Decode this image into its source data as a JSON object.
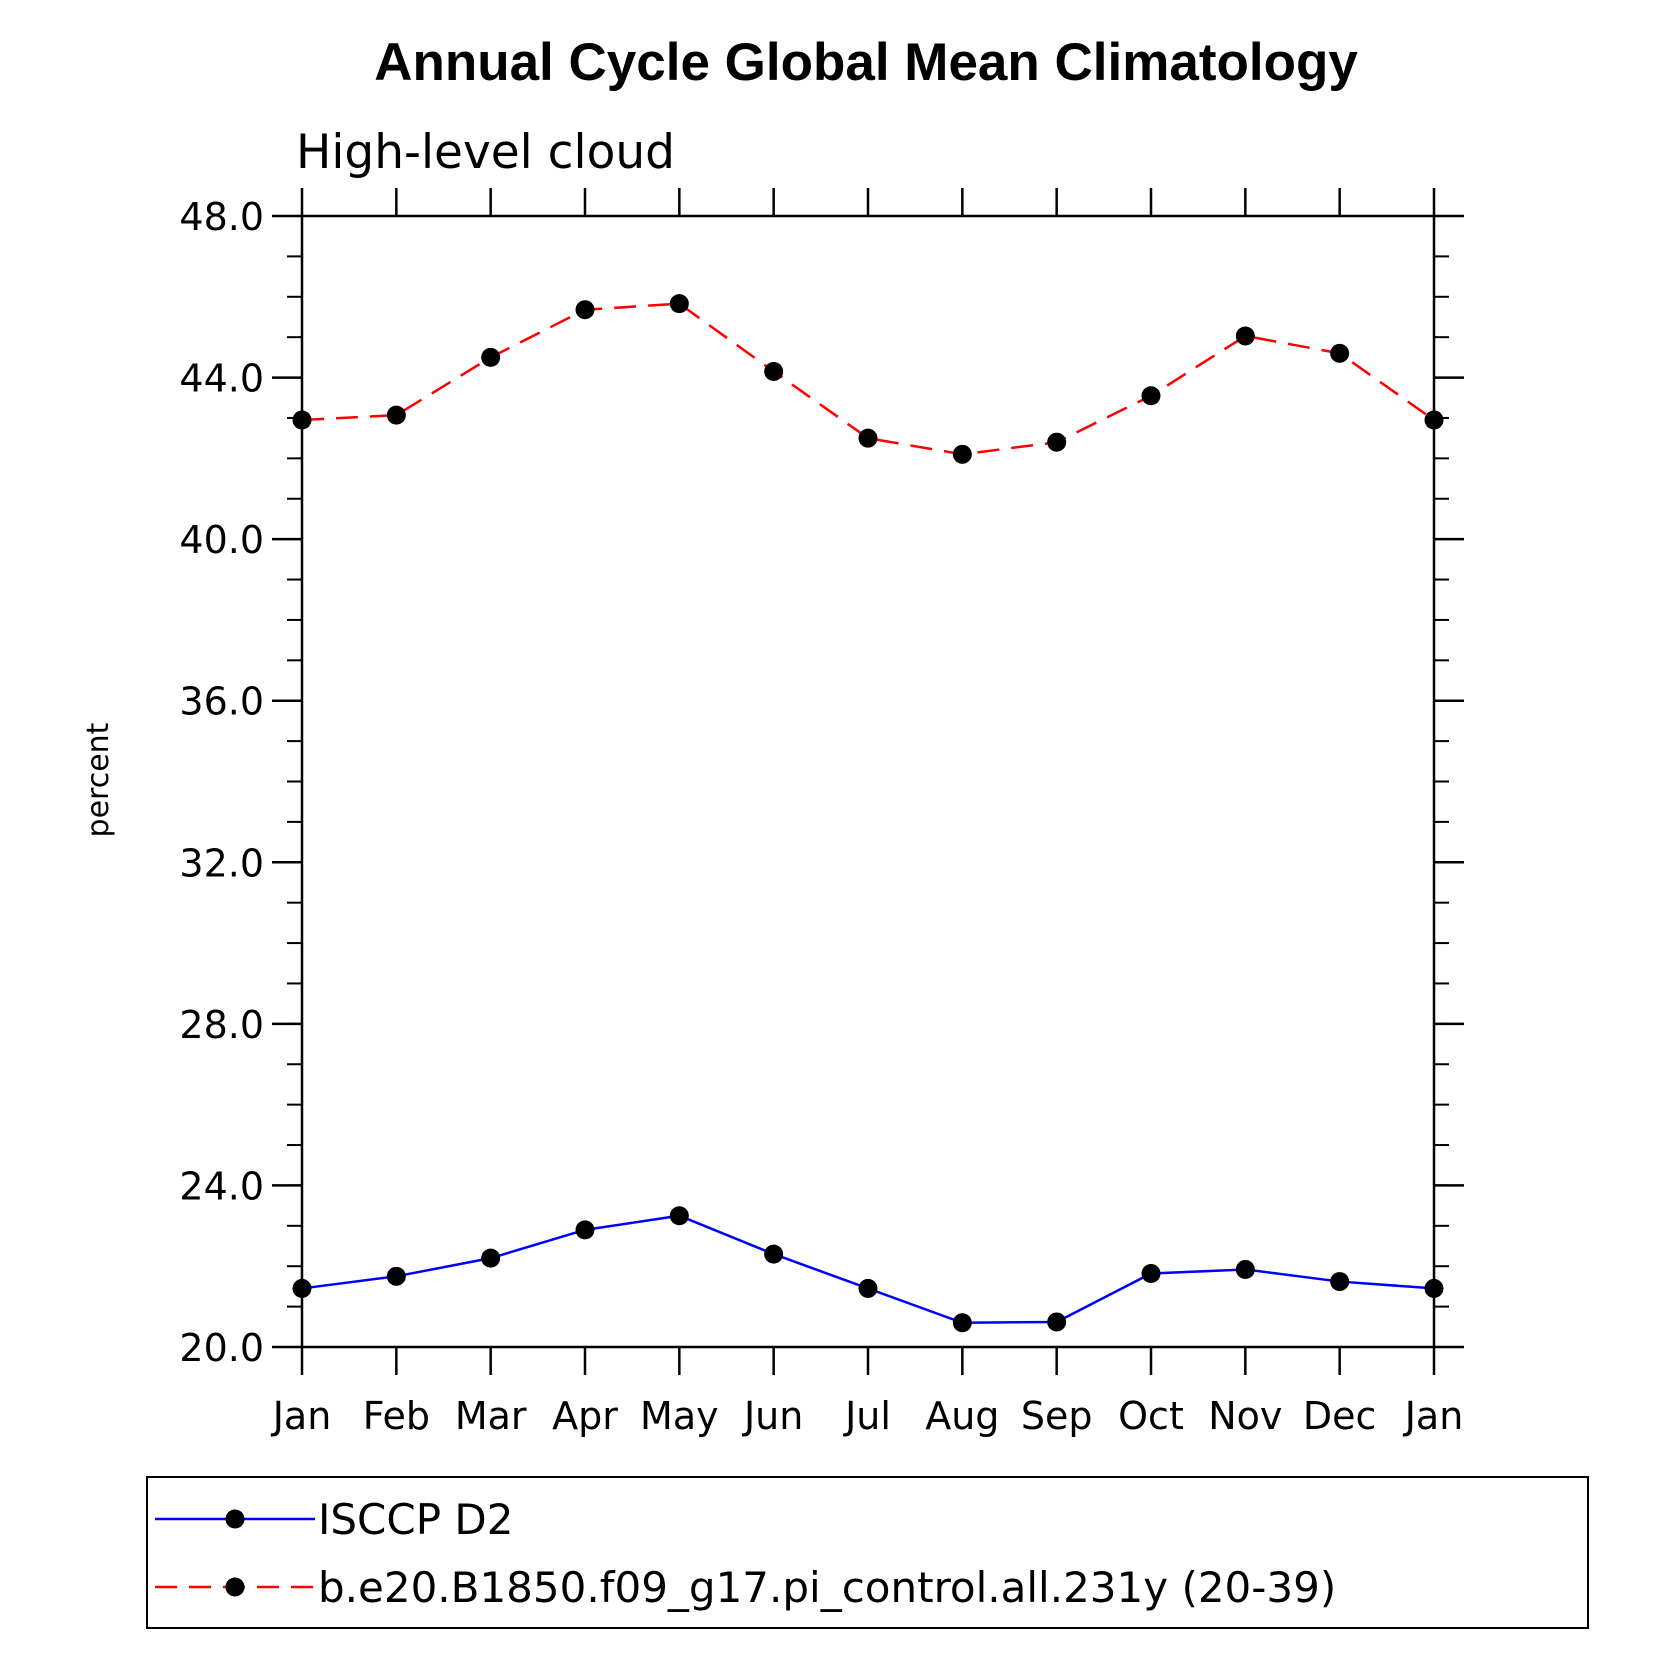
{
  "chart_data": {
    "type": "line",
    "title": "Annual Cycle Global Mean Climatology",
    "subtitle": "High-level cloud",
    "xlabel": "",
    "ylabel": "percent",
    "categories": [
      "Jan",
      "Feb",
      "Mar",
      "Apr",
      "May",
      "Jun",
      "Jul",
      "Aug",
      "Sep",
      "Oct",
      "Nov",
      "Dec",
      "Jan"
    ],
    "ylim": [
      20.0,
      48.0
    ],
    "yticks": [
      "20.0",
      "24.0",
      "28.0",
      "32.0",
      "36.0",
      "40.0",
      "44.0",
      "48.0"
    ],
    "grid": false,
    "legend_position": "bottom",
    "series": [
      {
        "name": "ISCCP D2",
        "color": "#0000ff",
        "style": "solid",
        "marker": "filled-circle",
        "values": [
          21.45,
          21.75,
          22.2,
          22.9,
          23.25,
          22.3,
          21.45,
          20.6,
          20.62,
          21.82,
          21.92,
          21.62,
          21.45
        ]
      },
      {
        "name": "b.e20.B1850.f09_g17.pi_control.all.231y (20-39)",
        "color": "#ff0000",
        "style": "dashed",
        "marker": "filled-circle",
        "values": [
          42.95,
          43.07,
          44.5,
          45.68,
          45.83,
          44.15,
          42.5,
          42.1,
          42.4,
          43.55,
          45.03,
          44.6,
          42.95
        ]
      }
    ]
  }
}
